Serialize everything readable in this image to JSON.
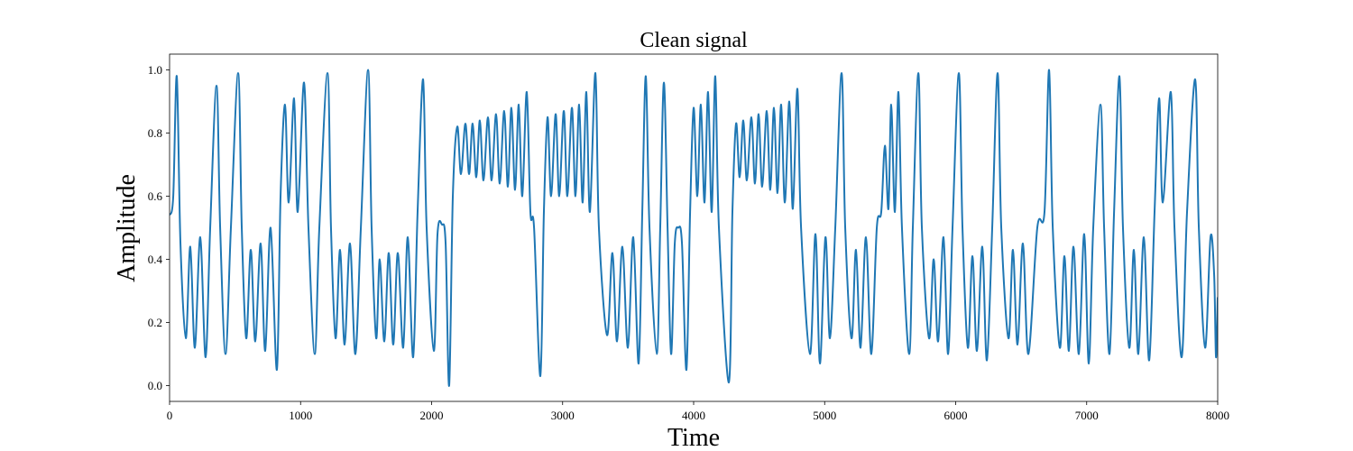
{
  "chart_data": {
    "type": "line",
    "title": "Clean signal",
    "x_label": "Time",
    "y_label": "Amplitude",
    "xlim": [
      0,
      8000
    ],
    "ylim": [
      -0.05,
      1.05
    ],
    "xticks": [
      0,
      1000,
      2000,
      3000,
      4000,
      5000,
      6000,
      7000,
      8000
    ],
    "yticks": [
      {
        "value": 0,
        "label": "0.0"
      },
      0.2,
      0.4,
      0.6,
      0.8,
      {
        "value": 1,
        "label": "1.0"
      }
    ],
    "grid": false,
    "series": [
      {
        "color": "#1f77b4",
        "x": [
          0,
          28,
          55,
          83,
          124,
          158,
          193,
          234,
          275,
          310,
          358,
          386,
          427,
          468,
          523,
          551,
          585,
          620,
          654,
          695,
          730,
          771,
          819,
          847,
          881,
          909,
          950,
          978,
          1026,
          1060,
          1108,
          1143,
          1205,
          1232,
          1267,
          1301,
          1336,
          1377,
          1418,
          1460,
          1515,
          1542,
          1577,
          1604,
          1639,
          1673,
          1707,
          1742,
          1783,
          1818,
          1859,
          1893,
          1935,
          1962,
          2017,
          2045,
          2079,
          2107,
          2134,
          2162,
          2196,
          2224,
          2258,
          2286,
          2313,
          2341,
          2368,
          2396,
          2430,
          2458,
          2492,
          2520,
          2554,
          2582,
          2609,
          2637,
          2665,
          2692,
          2726,
          2754,
          2782,
          2830,
          2857,
          2885,
          2912,
          2947,
          2974,
          3009,
          3036,
          3071,
          3098,
          3126,
          3153,
          3181,
          3208,
          3250,
          3277,
          3339,
          3380,
          3415,
          3456,
          3498,
          3539,
          3580,
          3608,
          3635,
          3663,
          3718,
          3745,
          3773,
          3801,
          3828,
          3856,
          3883,
          3911,
          3945,
          3973,
          4000,
          4028,
          4055,
          4083,
          4110,
          4138,
          4165,
          4193,
          4269,
          4296,
          4324,
          4351,
          4379,
          4406,
          4441,
          4468,
          4496,
          4523,
          4558,
          4585,
          4613,
          4640,
          4668,
          4696,
          4730,
          4757,
          4792,
          4820,
          4888,
          4930,
          4964,
          5006,
          5040,
          5081,
          5129,
          5157,
          5205,
          5239,
          5274,
          5315,
          5356,
          5398,
          5432,
          5460,
          5487,
          5508,
          5536,
          5563,
          5590,
          5645,
          5673,
          5715,
          5742,
          5797,
          5832,
          5866,
          5907,
          5942,
          5976,
          6024,
          6052,
          6093,
          6128,
          6162,
          6203,
          6238,
          6279,
          6320,
          6348,
          6403,
          6437,
          6472,
          6513,
          6555,
          6623,
          6678,
          6713,
          6741,
          6795,
          6830,
          6864,
          6899,
          6940,
          6981,
          7016,
          7050,
          7105,
          7133,
          7174,
          7209,
          7250,
          7277,
          7325,
          7360,
          7394,
          7436,
          7477,
          7518,
          7553,
          7581,
          7642,
          7670,
          7725,
          7766,
          7828,
          7856,
          7904,
          7945,
          7973,
          7987,
          8000
        ],
        "values": [
          0.54,
          0.6,
          0.98,
          0.45,
          0.15,
          0.44,
          0.12,
          0.47,
          0.09,
          0.5,
          0.95,
          0.5,
          0.1,
          0.5,
          0.99,
          0.5,
          0.15,
          0.43,
          0.14,
          0.45,
          0.11,
          0.5,
          0.05,
          0.6,
          0.89,
          0.58,
          0.91,
          0.55,
          0.96,
          0.5,
          0.1,
          0.5,
          0.99,
          0.5,
          0.15,
          0.43,
          0.13,
          0.45,
          0.1,
          0.5,
          1.0,
          0.5,
          0.15,
          0.4,
          0.14,
          0.42,
          0.13,
          0.42,
          0.12,
          0.47,
          0.09,
          0.55,
          0.97,
          0.5,
          0.11,
          0.48,
          0.51,
          0.45,
          0.0,
          0.6,
          0.82,
          0.67,
          0.83,
          0.67,
          0.83,
          0.66,
          0.84,
          0.65,
          0.85,
          0.65,
          0.86,
          0.64,
          0.87,
          0.63,
          0.88,
          0.62,
          0.89,
          0.6,
          0.93,
          0.55,
          0.5,
          0.03,
          0.55,
          0.85,
          0.6,
          0.86,
          0.6,
          0.87,
          0.6,
          0.88,
          0.6,
          0.89,
          0.58,
          0.93,
          0.55,
          0.99,
          0.5,
          0.16,
          0.42,
          0.14,
          0.44,
          0.12,
          0.47,
          0.07,
          0.55,
          0.98,
          0.5,
          0.1,
          0.5,
          0.96,
          0.5,
          0.1,
          0.45,
          0.5,
          0.45,
          0.05,
          0.55,
          0.88,
          0.6,
          0.89,
          0.58,
          0.93,
          0.55,
          0.98,
          0.5,
          0.01,
          0.55,
          0.83,
          0.66,
          0.84,
          0.65,
          0.85,
          0.64,
          0.86,
          0.63,
          0.87,
          0.62,
          0.88,
          0.61,
          0.89,
          0.58,
          0.9,
          0.56,
          0.94,
          0.5,
          0.1,
          0.48,
          0.07,
          0.47,
          0.15,
          0.5,
          0.99,
          0.5,
          0.15,
          0.43,
          0.12,
          0.47,
          0.1,
          0.5,
          0.55,
          0.76,
          0.56,
          0.89,
          0.55,
          0.93,
          0.5,
          0.1,
          0.5,
          0.99,
          0.5,
          0.15,
          0.4,
          0.14,
          0.47,
          0.1,
          0.5,
          0.99,
          0.5,
          0.12,
          0.41,
          0.11,
          0.44,
          0.08,
          0.5,
          0.99,
          0.5,
          0.15,
          0.43,
          0.13,
          0.45,
          0.1,
          0.5,
          0.55,
          1.0,
          0.5,
          0.12,
          0.41,
          0.11,
          0.44,
          0.1,
          0.48,
          0.07,
          0.5,
          0.89,
          0.5,
          0.1,
          0.55,
          0.98,
          0.5,
          0.12,
          0.43,
          0.1,
          0.47,
          0.08,
          0.55,
          0.91,
          0.58,
          0.93,
          0.5,
          0.09,
          0.55,
          0.97,
          0.5,
          0.12,
          0.47,
          0.35,
          0.09,
          0.28
        ]
      }
    ]
  }
}
